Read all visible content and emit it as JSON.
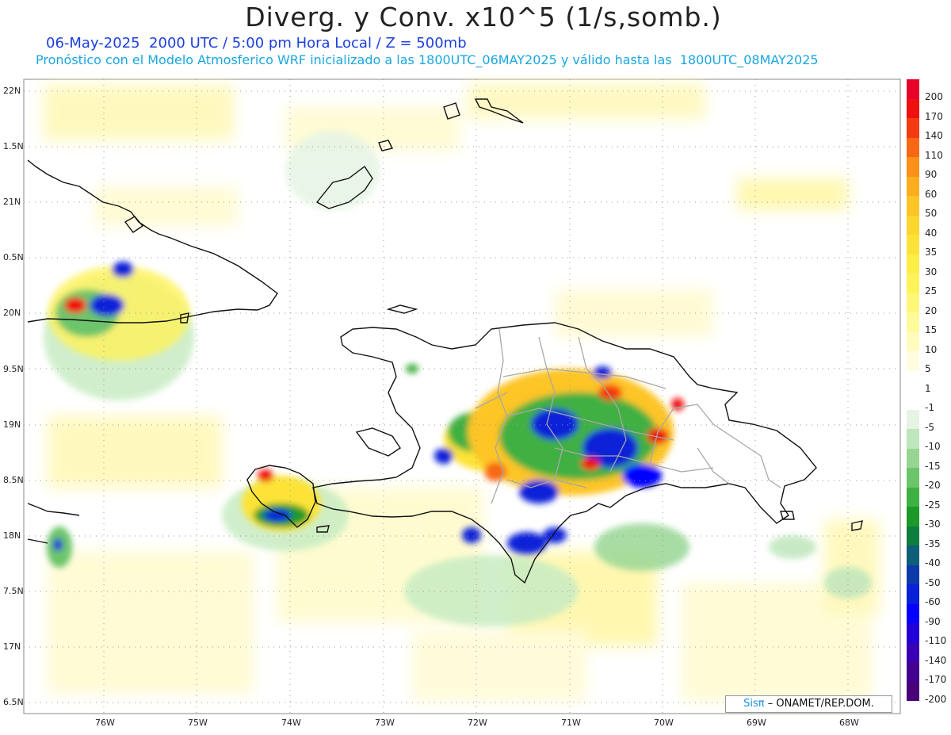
{
  "title": "Diverg. y Conv. x10^5 (1/s,somb.)",
  "subtitle_date": "06-May-2025  2000 UTC / 5:00 pm Hora Local / Z = 500mb",
  "subtitle_model": "Pronóstico con el Modelo Atmosferico WRF inicializado a las 1800UTC_06MAY2025 y válido hasta las  1800UTC_08MAY2025",
  "lat_labels": [
    "22N",
    "1.5N",
    "21N",
    "0.5N",
    "20N",
    "9.5N",
    "19N",
    "8.5N",
    "18N",
    "7.5N",
    "17N",
    "6.5N"
  ],
  "lon_labels": [
    "76W",
    "75W",
    "74W",
    "73W",
    "72W",
    "71W",
    "70W",
    "69W",
    "68W"
  ],
  "credit": {
    "brand": "Sisπ",
    "text": "– ONAMET/REP.DOM."
  },
  "colorbar": {
    "labels": [
      "200",
      "170",
      "140",
      "110",
      "90",
      "60",
      "50",
      "40",
      "35",
      "30",
      "25",
      "20",
      "15",
      "10",
      "5",
      "1",
      "-1",
      "-5",
      "-10",
      "-15",
      "-20",
      "-25",
      "-30",
      "-35",
      "-40",
      "-50",
      "-60",
      "-90",
      "-110",
      "-140",
      "-170",
      "-200"
    ],
    "colors": [
      "#e8002a",
      "#f01010",
      "#f43a10",
      "#f86814",
      "#fb8f18",
      "#fcae1e",
      "#fdc526",
      "#fdd62e",
      "#fde338",
      "#feee46",
      "#fff35a",
      "#fff77a",
      "#fffa9a",
      "#fffcbe",
      "#fffde0",
      "#ffffff",
      "#ffffff",
      "#e6f4e4",
      "#bfe6bc",
      "#96d692",
      "#6cc56a",
      "#3fb043",
      "#1b9a29",
      "#0d7e40",
      "#0f5e78",
      "#0c3aa8",
      "#0820d8",
      "#0600ff",
      "#2400d8",
      "#3a00b4",
      "#44008f",
      "#4a0078"
    ]
  },
  "map_elements": [
    "cuba-coastline",
    "jamaica-coastline",
    "hispaniola-coastline",
    "bahamas-islands",
    "puerto-rico-coastline",
    "dr-province-boundaries",
    "divergence-field"
  ]
}
